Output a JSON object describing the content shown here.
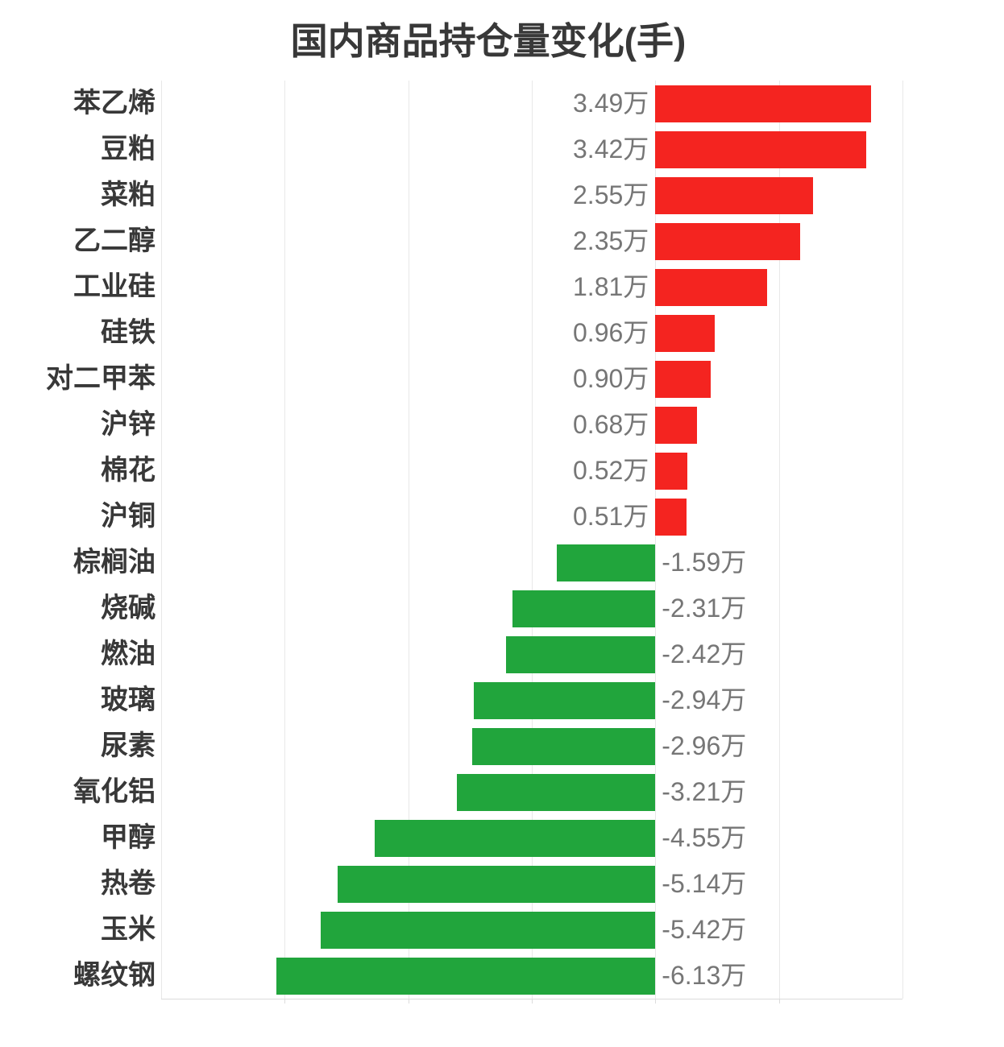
{
  "title": "国内商品持仓量变化(手)",
  "colors": {
    "positive_bar": "#f42420",
    "negative_bar": "#21a53c",
    "gridline": "#e8e8e8",
    "axis_line": "#dcdcdc",
    "category_text": "#383838",
    "value_text": "#767676"
  },
  "chart_data": {
    "type": "bar",
    "orientation": "horizontal",
    "title": "国内商品持仓量变化(手)",
    "unit": "万 (手)",
    "categories": [
      "苯乙烯",
      "豆粕",
      "菜粕",
      "乙二醇",
      "工业硅",
      "硅铁",
      "对二甲苯",
      "沪锌",
      "棉花",
      "沪铜",
      "棕榈油",
      "烧碱",
      "燃油",
      "玻璃",
      "尿素",
      "氧化铝",
      "甲醇",
      "热卷",
      "玉米",
      "螺纹钢"
    ],
    "values": [
      3.49,
      3.42,
      2.55,
      2.35,
      1.81,
      0.96,
      0.9,
      0.68,
      0.52,
      0.51,
      -1.59,
      -2.31,
      -2.42,
      -2.94,
      -2.96,
      -3.21,
      -4.55,
      -5.14,
      -5.42,
      -6.13
    ],
    "value_labels": [
      "3.49万",
      "3.42万",
      "2.55万",
      "2.35万",
      "1.81万",
      "0.96万",
      "0.90万",
      "0.68万",
      "0.52万",
      "0.51万",
      "-1.59万",
      "-2.31万",
      "-2.42万",
      "-2.94万",
      "-2.96万",
      "-3.21万",
      "-4.55万",
      "-5.14万",
      "-5.42万",
      "-6.13万"
    ],
    "xlim": [
      -8,
      4
    ],
    "grid_step": 2,
    "grid": true,
    "x_axis_labels_visible": false,
    "legend": "none",
    "positive_color": "#f42420",
    "negative_color": "#21a53c"
  }
}
